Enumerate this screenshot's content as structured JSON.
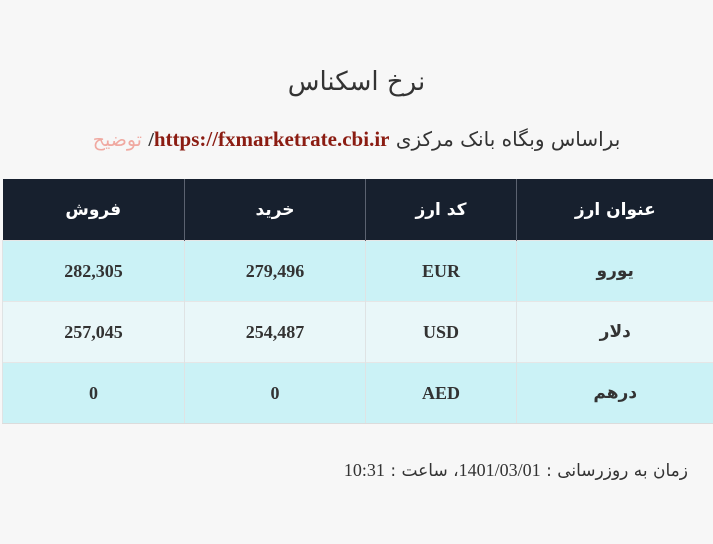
{
  "page": {
    "title": "نرخ اسکناس",
    "subtitle_prefix": "براساس وبگاه بانک مرکزی",
    "source_url": "https://fxmarketrate.cbi.ir",
    "separator": "/",
    "explain_link": "توضیح"
  },
  "table": {
    "headers": {
      "title": "عنوان ارز",
      "code": "کد ارز",
      "buy": "خرید",
      "sell": "فروش"
    },
    "rows": [
      {
        "name": "یورو",
        "code": "EUR",
        "buy": "279,496",
        "sell": "282,305"
      },
      {
        "name": "دلار",
        "code": "USD",
        "buy": "254,487",
        "sell": "257,045"
      },
      {
        "name": "درهم",
        "code": "AED",
        "buy": "0",
        "sell": "0"
      }
    ]
  },
  "footer": {
    "update_label": "زمان به روزرسانی :",
    "date": "1401/03/01",
    "time_label": "، ساعت :",
    "time": "10:31"
  },
  "colors": {
    "header_bg": "#17202e",
    "row_odd_bg": "#cbf2f6",
    "row_even_bg": "#e9f7f9",
    "url_color": "#8b1c12",
    "explain_color": "#f0a9a1"
  }
}
